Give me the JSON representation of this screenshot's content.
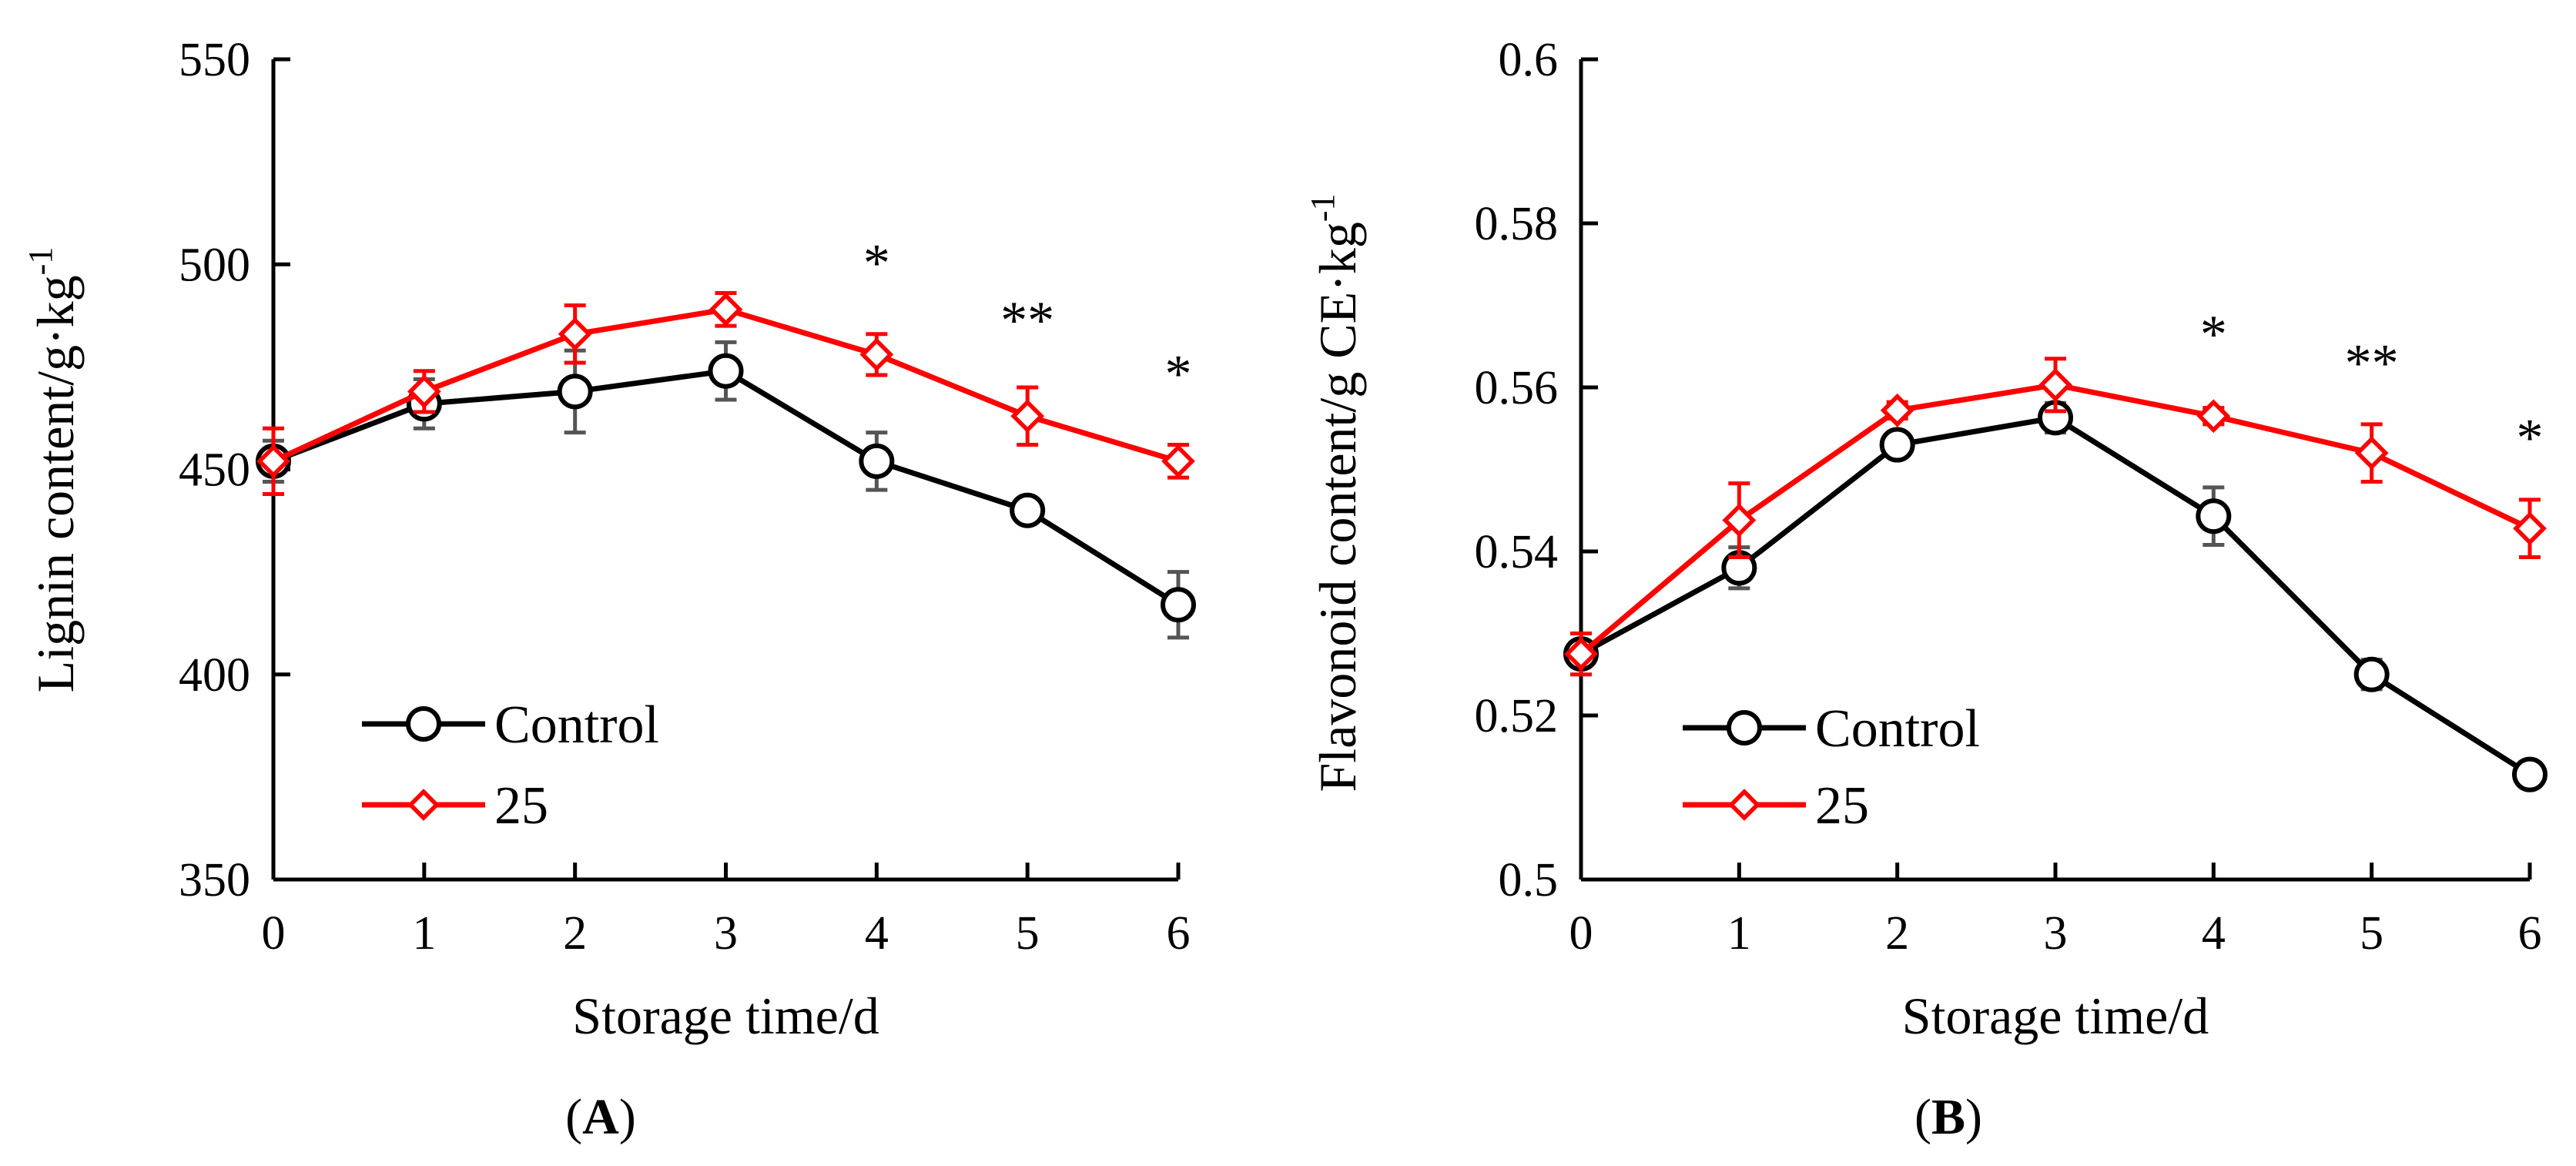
{
  "chart_data": [
    {
      "type": "line",
      "panel_label": "A",
      "xlabel": "Storage time/d",
      "ylabel": "Lignin content/g·kg",
      "ylabel_sup": "-1",
      "x": [
        0,
        1,
        2,
        3,
        4,
        5,
        6
      ],
      "xlim": [
        0,
        6
      ],
      "ylim": [
        350,
        550
      ],
      "yticks": [
        350,
        400,
        450,
        500,
        550
      ],
      "series": [
        {
          "name": "Control",
          "color": "#000000",
          "marker": "circle",
          "values": [
            452,
            466,
            469,
            474,
            452,
            440,
            417
          ],
          "errors": [
            5,
            6,
            10,
            7,
            7,
            2,
            8
          ]
        },
        {
          "name": "25",
          "color": "#ff0000",
          "marker": "diamond",
          "values": [
            452,
            469,
            483,
            489,
            478,
            463,
            452
          ],
          "errors": [
            8,
            5,
            7,
            4,
            5,
            7,
            4
          ]
        }
      ],
      "annotations": [
        {
          "x": 4,
          "y": 496,
          "text": "*"
        },
        {
          "x": 5,
          "y": 482,
          "text": "**"
        },
        {
          "x": 6,
          "y": 469,
          "text": "*"
        }
      ]
    },
    {
      "type": "line",
      "panel_label": "B",
      "xlabel": "Storage time/d",
      "ylabel": "Flavonoid content/g CE·kg",
      "ylabel_sup": "-1",
      "x": [
        0,
        1,
        2,
        3,
        4,
        5,
        6
      ],
      "xlim": [
        0,
        6
      ],
      "ylim": [
        0.5,
        0.6
      ],
      "yticks": [
        0.5,
        0.52,
        0.54,
        0.56,
        0.58,
        0.6
      ],
      "ytick_labels": [
        "0.5",
        "0.52",
        "0.54",
        "0.56",
        "0.58",
        "0.6"
      ],
      "series": [
        {
          "name": "Control",
          "color": "#000000",
          "marker": "circle",
          "values": [
            0.5275,
            0.538,
            0.553,
            0.5563,
            0.5443,
            0.525,
            0.5128
          ],
          "errors": [
            0.0015,
            0.0025,
            0.0012,
            0.0018,
            0.0035,
            0.0018,
            0.0012
          ]
        },
        {
          "name": "25",
          "color": "#ff0000",
          "marker": "diamond",
          "values": [
            0.5275,
            0.5438,
            0.5572,
            0.5603,
            0.5565,
            0.552,
            0.5428
          ],
          "errors": [
            0.0025,
            0.0045,
            0.001,
            0.0032,
            0.001,
            0.0035,
            0.0035
          ]
        }
      ],
      "annotations": [
        {
          "x": 4,
          "y": 0.5643,
          "text": "*"
        },
        {
          "x": 5,
          "y": 0.5608,
          "text": "**"
        },
        {
          "x": 6,
          "y": 0.5517,
          "text": "*"
        }
      ]
    }
  ]
}
